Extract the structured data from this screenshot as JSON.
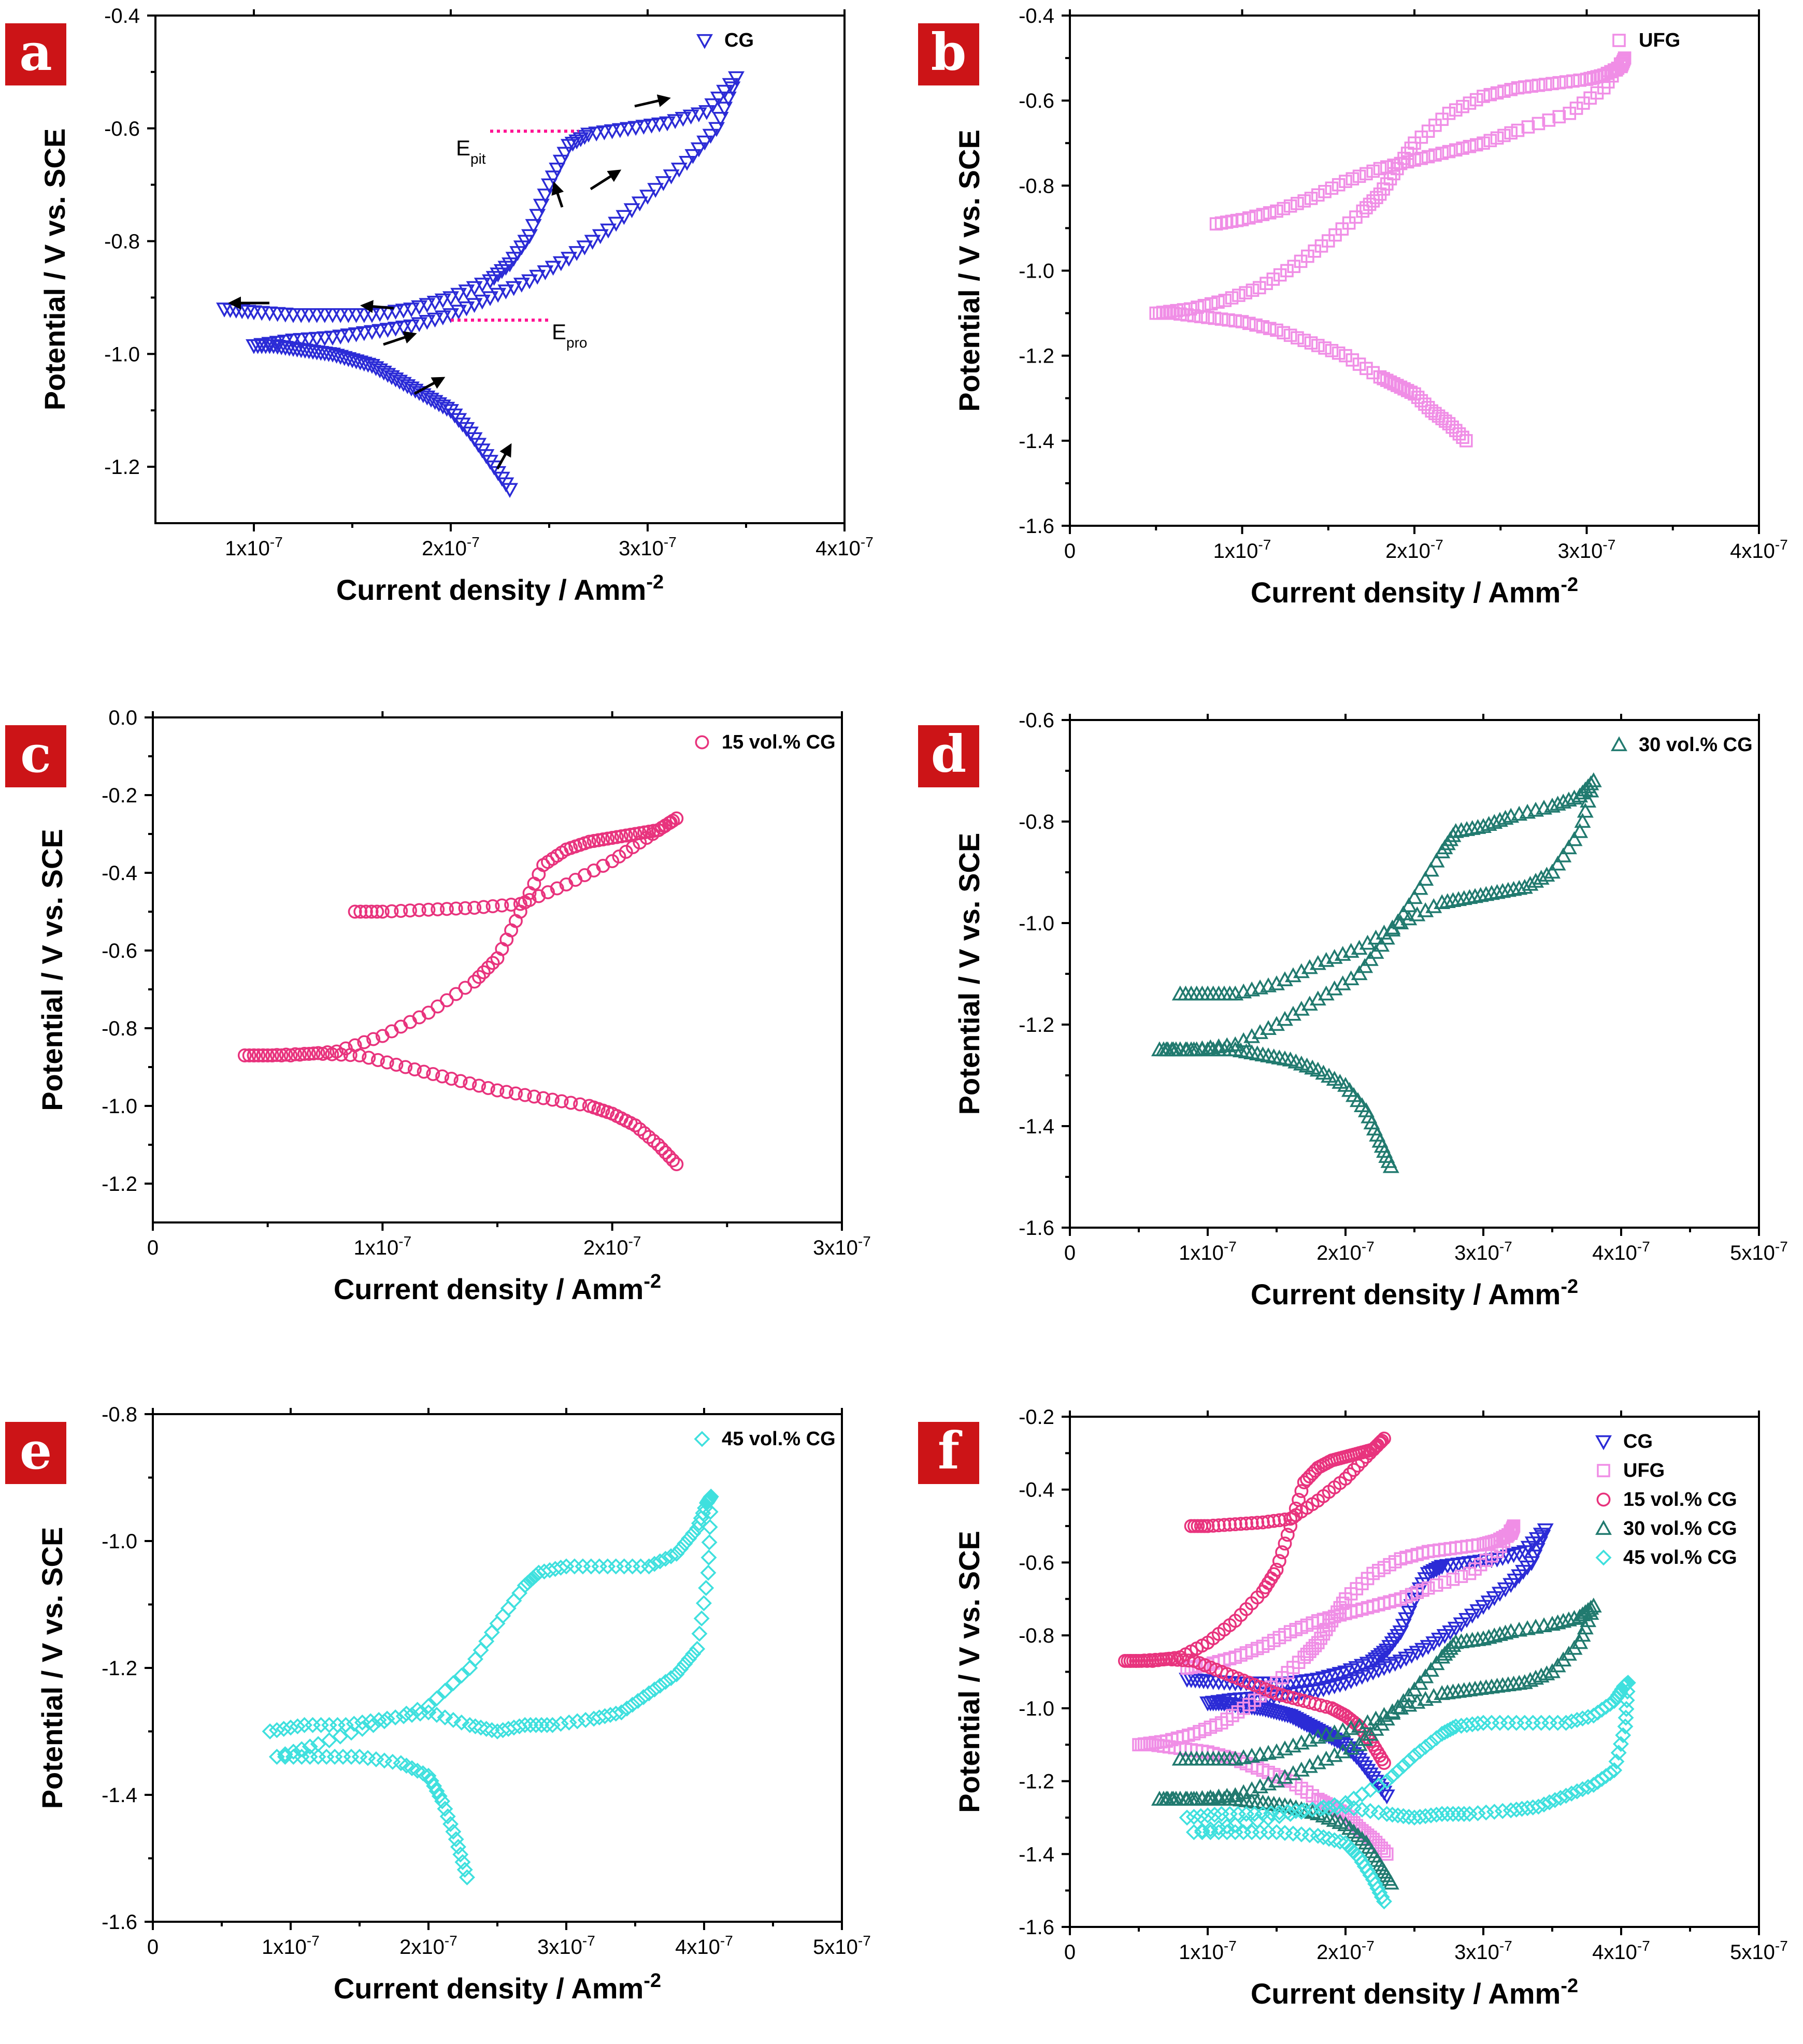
{
  "figure": {
    "colors": {
      "CG": "#2b2bd6",
      "UFG": "#f08ee6",
      "15 vol.% CG": "#e8337d",
      "30 vol.% CG": "#217a6f",
      "45 vol.% CG": "#3fe0de",
      "badge": "#cc1417",
      "annotation": "#ff1493",
      "arrow": "#000000"
    }
  },
  "chart_data": [
    {
      "panel": "a",
      "type": "line",
      "xlabel": "Current density / Amm",
      "xlabel_sup": "-2",
      "ylabel": "Potential / V vs. SCE",
      "xlim": [
        5e-08,
        4e-07
      ],
      "ylim": [
        -1.3,
        -0.4
      ],
      "xticks": [
        1e-07,
        2e-07,
        3e-07,
        4e-07
      ],
      "xtick_labels": [
        "1x10-7",
        "2x10-7",
        "3x10-7",
        "4x10-7"
      ],
      "yticks": [
        -1.2,
        -1.0,
        -0.8,
        -0.6,
        -0.4
      ],
      "ytick_labels": [
        "-1.2",
        "-1.0",
        "-0.8",
        "-0.6",
        "-0.4"
      ],
      "legend_pos": "top-right",
      "series": [
        {
          "name": "CG",
          "marker": "triangle-down",
          "x": [
            2.3e-07,
            2.2e-07,
            2.1e-07,
            2e-07,
            1.9e-07,
            1.8e-07,
            1.7e-07,
            1.6e-07,
            1.5e-07,
            1.4e-07,
            1.3e-07,
            1.2e-07,
            1.1e-07,
            1e-07,
            1.2e-07,
            1.4e-07,
            1.6e-07,
            1.8e-07,
            2e-07,
            2.2e-07,
            2.4e-07,
            2.6e-07,
            2.8e-07,
            3e-07,
            3.2e-07,
            3.35e-07,
            3.45e-07,
            3.3e-07,
            3.1e-07,
            2.9e-07,
            2.7e-07,
            2.6e-07,
            2.5e-07,
            2.4e-07,
            2.3e-07,
            2.2e-07,
            2e-07,
            1.8e-07,
            1.6e-07,
            1.4e-07,
            1.2e-07,
            1e-07,
            8.5e-08
          ],
          "y": [
            -1.24,
            -1.19,
            -1.14,
            -1.1,
            -1.08,
            -1.06,
            -1.04,
            -1.02,
            -1.01,
            -1.0,
            -0.995,
            -0.99,
            -0.985,
            -0.985,
            -0.975,
            -0.97,
            -0.96,
            -0.95,
            -0.93,
            -0.9,
            -0.87,
            -0.83,
            -0.78,
            -0.72,
            -0.66,
            -0.6,
            -0.51,
            -0.57,
            -0.59,
            -0.6,
            -0.61,
            -0.63,
            -0.7,
            -0.79,
            -0.84,
            -0.87,
            -0.9,
            -0.92,
            -0.93,
            -0.93,
            -0.93,
            -0.925,
            -0.92
          ]
        }
      ],
      "annotations": [
        {
          "text": "E",
          "sub": "pit",
          "y": -0.605
        },
        {
          "text": "E",
          "sub": "pro",
          "y": -0.94
        }
      ]
    },
    {
      "panel": "b",
      "type": "line",
      "xlabel": "Current density / Amm",
      "xlabel_sup": "-2",
      "ylabel": "Potential / V vs. SCE",
      "xlim": [
        0,
        4e-07
      ],
      "ylim": [
        -1.6,
        -0.4
      ],
      "xticks": [
        0,
        1e-07,
        2e-07,
        3e-07,
        4e-07
      ],
      "xtick_labels": [
        "0",
        "1x10-7",
        "2x10-7",
        "3x10-7",
        "4x10-7"
      ],
      "yticks": [
        -1.6,
        -1.4,
        -1.2,
        -1.0,
        -0.8,
        -0.6,
        -0.4
      ],
      "ytick_labels": [
        "-1.6",
        "-1.4",
        "-1.2",
        "-1.0",
        "-0.8",
        "-0.6",
        "-0.4"
      ],
      "legend_pos": "top-right",
      "series": [
        {
          "name": "UFG",
          "marker": "square",
          "x": [
            2.3e-07,
            2.2e-07,
            2.1e-07,
            2e-07,
            1.9e-07,
            1.8e-07,
            1.6e-07,
            1.4e-07,
            1.2e-07,
            1e-07,
            8e-08,
            6e-08,
            5e-08,
            7e-08,
            9e-08,
            1.1e-07,
            1.3e-07,
            1.5e-07,
            1.7e-07,
            1.8e-07,
            1.9e-07,
            2e-07,
            2.2e-07,
            2.4e-07,
            2.6e-07,
            2.8e-07,
            3e-07,
            3.1e-07,
            3.2e-07,
            3.22e-07,
            3.1e-07,
            2.9e-07,
            2.6e-07,
            2.4e-07,
            2.2e-07,
            2e-07,
            1.8e-07,
            1.6e-07,
            1.4e-07,
            1.2e-07,
            1e-07,
            8.5e-08
          ],
          "y": [
            -1.4,
            -1.36,
            -1.33,
            -1.29,
            -1.27,
            -1.25,
            -1.2,
            -1.17,
            -1.14,
            -1.12,
            -1.11,
            -1.1,
            -1.1,
            -1.09,
            -1.07,
            -1.04,
            -0.99,
            -0.93,
            -0.86,
            -0.82,
            -0.76,
            -0.7,
            -0.63,
            -0.59,
            -0.57,
            -0.56,
            -0.55,
            -0.54,
            -0.52,
            -0.5,
            -0.57,
            -0.63,
            -0.67,
            -0.7,
            -0.72,
            -0.74,
            -0.76,
            -0.79,
            -0.83,
            -0.86,
            -0.88,
            -0.89
          ]
        }
      ]
    },
    {
      "panel": "c",
      "type": "line",
      "xlabel": "Current density / Amm",
      "xlabel_sup": "-2",
      "ylabel": "Potential / V vs. SCE",
      "xlim": [
        0,
        3e-07
      ],
      "ylim": [
        -1.3,
        0.0
      ],
      "xticks": [
        0,
        1e-07,
        2e-07,
        3e-07
      ],
      "xtick_labels": [
        "0",
        "1x10-7",
        "2x10-7",
        "3x10-7"
      ],
      "yticks": [
        -1.2,
        -1.0,
        -0.8,
        -0.6,
        -0.4,
        -0.2,
        0.0
      ],
      "ytick_labels": [
        "-1.2",
        "-1.0",
        "-0.8",
        "-0.6",
        "-0.4",
        "-0.2",
        "0.0"
      ],
      "legend_pos": "top-right",
      "series": [
        {
          "name": "15 vol.% CG",
          "marker": "circle",
          "x": [
            2.28e-07,
            2.2e-07,
            2.1e-07,
            2e-07,
            1.9e-07,
            1.7e-07,
            1.5e-07,
            1.3e-07,
            1.1e-07,
            9e-08,
            7e-08,
            5e-08,
            4e-08,
            6e-08,
            8e-08,
            1e-07,
            1.2e-07,
            1.4e-07,
            1.5e-07,
            1.6e-07,
            1.7e-07,
            1.8e-07,
            1.9e-07,
            2e-07,
            2.1e-07,
            2.2e-07,
            2.28e-07,
            2.15e-07,
            2e-07,
            1.8e-07,
            1.6e-07,
            1.4e-07,
            1.2e-07,
            1e-07,
            8.8e-08
          ],
          "y": [
            -1.15,
            -1.1,
            -1.05,
            -1.02,
            -1.0,
            -0.98,
            -0.96,
            -0.93,
            -0.9,
            -0.87,
            -0.865,
            -0.87,
            -0.87,
            -0.87,
            -0.86,
            -0.82,
            -0.76,
            -0.68,
            -0.62,
            -0.5,
            -0.38,
            -0.34,
            -0.32,
            -0.31,
            -0.3,
            -0.29,
            -0.26,
            -0.31,
            -0.37,
            -0.43,
            -0.48,
            -0.49,
            -0.495,
            -0.5,
            -0.5
          ]
        }
      ]
    },
    {
      "panel": "d",
      "type": "line",
      "xlabel": "Current density / Amm",
      "xlabel_sup": "-2",
      "ylabel": "Potential / V vs. SCE",
      "xlim": [
        0,
        5e-07
      ],
      "ylim": [
        -1.6,
        -0.6
      ],
      "xticks": [
        0,
        1e-07,
        2e-07,
        3e-07,
        4e-07,
        5e-07
      ],
      "xtick_labels": [
        "0",
        "1x10-7",
        "2x10-7",
        "3x10-7",
        "4x10-7",
        "5x10-7"
      ],
      "yticks": [
        -1.6,
        -1.4,
        -1.2,
        -1.0,
        -0.8,
        -0.6
      ],
      "ytick_labels": [
        "-1.6",
        "-1.4",
        "-1.2",
        "-1.0",
        "-0.8",
        "-0.6"
      ],
      "legend_pos": "top-right",
      "series": [
        {
          "name": "30 vol.% CG",
          "marker": "triangle-up",
          "x": [
            2.33e-07,
            2.25e-07,
            2.15e-07,
            2e-07,
            1.8e-07,
            1.6e-07,
            1.4e-07,
            1.2e-07,
            1e-07,
            8e-08,
            6.5e-08,
            9e-08,
            1.2e-07,
            1.5e-07,
            1.8e-07,
            2.1e-07,
            2.3e-07,
            2.5e-07,
            2.7e-07,
            2.8e-07,
            3e-07,
            3.2e-07,
            3.5e-07,
            3.7e-07,
            3.8e-07,
            3.7e-07,
            3.5e-07,
            3.3e-07,
            3.1e-07,
            2.9e-07,
            2.7e-07,
            2.4e-07,
            2.1e-07,
            1.8e-07,
            1.5e-07,
            1.2e-07,
            1e-07,
            8e-08
          ],
          "y": [
            -1.48,
            -1.43,
            -1.37,
            -1.32,
            -1.29,
            -1.27,
            -1.26,
            -1.25,
            -1.25,
            -1.25,
            -1.25,
            -1.25,
            -1.24,
            -1.2,
            -1.15,
            -1.1,
            -1.03,
            -0.95,
            -0.86,
            -0.82,
            -0.81,
            -0.79,
            -0.77,
            -0.75,
            -0.72,
            -0.82,
            -0.9,
            -0.93,
            -0.94,
            -0.95,
            -0.96,
            -1.0,
            -1.05,
            -1.08,
            -1.12,
            -1.14,
            -1.14,
            -1.14
          ]
        }
      ]
    },
    {
      "panel": "e",
      "type": "line",
      "xlabel": "Current density / Amm",
      "xlabel_sup": "-2",
      "ylabel": "Potential / V vs. SCE",
      "xlim": [
        0,
        5e-07
      ],
      "ylim": [
        -1.6,
        -0.8
      ],
      "xticks": [
        0,
        1e-07,
        2e-07,
        3e-07,
        4e-07,
        5e-07
      ],
      "xtick_labels": [
        "0",
        "1x10-7",
        "2x10-7",
        "3x10-7",
        "4x10-7",
        "5x10-7"
      ],
      "yticks": [
        -1.6,
        -1.4,
        -1.2,
        -1.0,
        -0.8
      ],
      "ytick_labels": [
        "-1.6",
        "-1.4",
        "-1.2",
        "-1.0",
        "-0.8"
      ],
      "legend_pos": "top-right",
      "series": [
        {
          "name": "45 vol.% CG",
          "marker": "diamond",
          "x": [
            2.28e-07,
            2.2e-07,
            2.1e-07,
            2e-07,
            1.8e-07,
            1.5e-07,
            1.2e-07,
            9e-08,
            1.2e-07,
            1.6e-07,
            2e-07,
            2.3e-07,
            2.5e-07,
            2.7e-07,
            2.8e-07,
            3e-07,
            3.3e-07,
            3.6e-07,
            3.8e-07,
            3.95e-07,
            4.02e-07,
            4.05e-07,
            4.03e-07,
            3.95e-07,
            3.8e-07,
            3.6e-07,
            3.4e-07,
            3.2e-07,
            2.9e-07,
            2.7e-07,
            2.5e-07,
            2.3e-07,
            2e-07,
            1.7e-07,
            1.4e-07,
            1.1e-07,
            8.5e-08
          ],
          "y": [
            -1.53,
            -1.47,
            -1.41,
            -1.37,
            -1.35,
            -1.34,
            -1.34,
            -1.34,
            -1.32,
            -1.29,
            -1.26,
            -1.2,
            -1.13,
            -1.07,
            -1.05,
            -1.04,
            -1.04,
            -1.04,
            -1.02,
            -0.98,
            -0.94,
            -0.93,
            -1.05,
            -1.17,
            -1.21,
            -1.24,
            -1.27,
            -1.28,
            -1.29,
            -1.29,
            -1.3,
            -1.29,
            -1.27,
            -1.28,
            -1.29,
            -1.29,
            -1.3
          ]
        }
      ]
    },
    {
      "panel": "f",
      "type": "line",
      "xlabel": "Current density / Amm",
      "xlabel_sup": "-2",
      "ylabel": "Potential / V vs. SCE",
      "xlim": [
        0,
        5e-07
      ],
      "ylim": [
        -1.6,
        -0.2
      ],
      "xticks": [
        0,
        1e-07,
        2e-07,
        3e-07,
        4e-07,
        5e-07
      ],
      "xtick_labels": [
        "0",
        "1x10-7",
        "2x10-7",
        "3x10-7",
        "4x10-7",
        "5x10-7"
      ],
      "yticks": [
        -1.6,
        -1.4,
        -1.2,
        -1.0,
        -0.8,
        -0.6,
        -0.4,
        -0.2
      ],
      "ytick_labels": [
        "-1.6",
        "-1.4",
        "-1.2",
        "-1.0",
        "-0.8",
        "-0.6",
        "-0.4",
        "-0.2"
      ],
      "legend_pos": "top-right",
      "series_ref": [
        "CG",
        "UFG",
        "15 vol.% CG",
        "30 vol.% CG",
        "45 vol.% CG"
      ]
    }
  ]
}
